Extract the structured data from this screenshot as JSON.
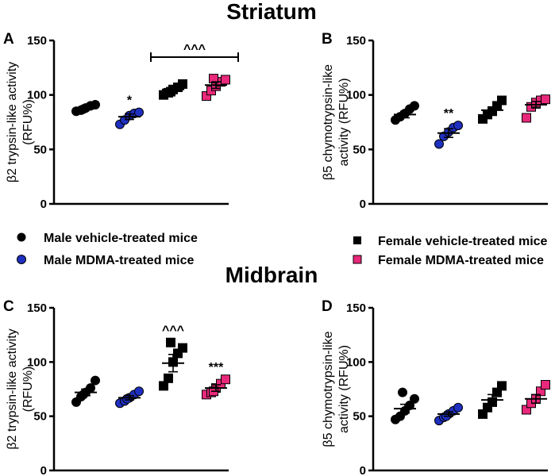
{
  "section_titles": {
    "top": "Striatum",
    "bottom": "Midbrain"
  },
  "legend": [
    {
      "label": "Male vehicle-treated mice",
      "marker": "circle",
      "color": "#000000"
    },
    {
      "label": "Male MDMA-treated mice",
      "marker": "circle",
      "color": "#1f2fbf"
    },
    {
      "label": "Female vehicle-treated mice",
      "marker": "square",
      "color": "#000000"
    },
    {
      "label": "Female MDMA-treated mice",
      "marker": "square",
      "color": "#e8287a"
    }
  ],
  "chart_data": [
    {
      "panel": "A",
      "type": "scatter",
      "region": "Striatum",
      "ylabel_lines": [
        "β2 trypsin-like activity",
        "(RFU%)"
      ],
      "ylim": [
        0,
        150
      ],
      "yticks": [
        0,
        50,
        100,
        150
      ],
      "groups": [
        {
          "name": "Male vehicle-treated mice",
          "marker": "circle",
          "color": "#000000",
          "mean": 88,
          "sem": 1.5,
          "values": [
            85,
            86,
            88,
            90,
            91,
            87
          ],
          "annotation": ""
        },
        {
          "name": "Male MDMA-treated mice",
          "marker": "circle",
          "color": "#1f2fbf",
          "mean": 80,
          "sem": 2.5,
          "values": [
            73,
            77,
            81,
            83,
            84
          ],
          "annotation": "*"
        },
        {
          "name": "Female vehicle-treated mice",
          "marker": "square",
          "color": "#000000",
          "mean": 105,
          "sem": 2,
          "values": [
            100,
            102,
            105,
            107,
            110,
            103
          ],
          "annotation": ""
        },
        {
          "name": "Female MDMA-treated mice",
          "marker": "square",
          "color": "#e8287a",
          "mean": 109,
          "sem": 3,
          "values": [
            99,
            104,
            108,
            112,
            114,
            115
          ],
          "annotation": ""
        }
      ],
      "bracket": {
        "from_group": 3,
        "to_group": 4,
        "label": "^^^"
      }
    },
    {
      "panel": "B",
      "type": "scatter",
      "region": "Striatum",
      "ylabel_lines": [
        "β5 chymotrypsin-like",
        "activity (RFU%)"
      ],
      "ylim": [
        0,
        150
      ],
      "yticks": [
        0,
        50,
        100,
        150
      ],
      "groups": [
        {
          "name": "Male vehicle-treated mice",
          "marker": "circle",
          "color": "#000000",
          "mean": 82,
          "sem": 3,
          "values": [
            77,
            80,
            83,
            87,
            90
          ],
          "annotation": ""
        },
        {
          "name": "Male MDMA-treated mice",
          "marker": "circle",
          "color": "#1f2fbf",
          "mean": 65,
          "sem": 4,
          "values": [
            55,
            62,
            66,
            70,
            72
          ],
          "annotation": "**"
        },
        {
          "name": "Female vehicle-treated mice",
          "marker": "square",
          "color": "#000000",
          "mean": 86,
          "sem": 3,
          "values": [
            78,
            82,
            85,
            90,
            95
          ],
          "annotation": ""
        },
        {
          "name": "Female MDMA-treated mice",
          "marker": "square",
          "color": "#e8287a",
          "mean": 91,
          "sem": 3,
          "values": [
            79,
            89,
            93,
            95,
            96
          ],
          "annotation": ""
        }
      ]
    },
    {
      "panel": "C",
      "type": "scatter",
      "region": "Midbrain",
      "ylabel_lines": [
        "β2 trypsin-like activity",
        "(RFU%)"
      ],
      "ylim": [
        0,
        150
      ],
      "yticks": [
        0,
        50,
        100,
        150
      ],
      "groups": [
        {
          "name": "Male vehicle-treated mice",
          "marker": "circle",
          "color": "#000000",
          "mean": 72,
          "sem": 3,
          "values": [
            63,
            68,
            72,
            76,
            83,
            70
          ],
          "annotation": ""
        },
        {
          "name": "Male MDMA-treated mice",
          "marker": "circle",
          "color": "#1f2fbf",
          "mean": 67,
          "sem": 2,
          "values": [
            62,
            64,
            67,
            70,
            73,
            66
          ],
          "annotation": ""
        },
        {
          "name": "Female vehicle-treated mice",
          "marker": "square",
          "color": "#000000",
          "mean": 99,
          "sem": 8,
          "values": [
            78,
            85,
            100,
            108,
            113,
            118
          ],
          "annotation": "^^^"
        },
        {
          "name": "Female MDMA-treated mice",
          "marker": "square",
          "color": "#e8287a",
          "mean": 76,
          "sem": 3,
          "values": [
            70,
            72,
            76,
            80,
            84,
            73
          ],
          "annotation": "***"
        }
      ]
    },
    {
      "panel": "D",
      "type": "scatter",
      "region": "Midbrain",
      "ylabel_lines": [
        "β5 chymotrypsin-like",
        "activity (RFU%)"
      ],
      "ylim": [
        0,
        150
      ],
      "yticks": [
        0,
        50,
        100,
        150
      ],
      "groups": [
        {
          "name": "Male vehicle-treated mice",
          "marker": "circle",
          "color": "#000000",
          "mean": 57,
          "sem": 4,
          "values": [
            47,
            50,
            55,
            60,
            66,
            72
          ],
          "annotation": ""
        },
        {
          "name": "Male MDMA-treated mice",
          "marker": "circle",
          "color": "#1f2fbf",
          "mean": 52,
          "sem": 2,
          "values": [
            46,
            49,
            52,
            55,
            58,
            50
          ],
          "annotation": ""
        },
        {
          "name": "Female vehicle-treated mice",
          "marker": "square",
          "color": "#000000",
          "mean": 65,
          "sem": 5,
          "values": [
            52,
            58,
            63,
            72,
            78
          ],
          "annotation": ""
        },
        {
          "name": "Female MDMA-treated mice",
          "marker": "square",
          "color": "#e8287a",
          "mean": 66,
          "sem": 4,
          "values": [
            56,
            62,
            66,
            73,
            79
          ],
          "annotation": ""
        }
      ]
    }
  ]
}
